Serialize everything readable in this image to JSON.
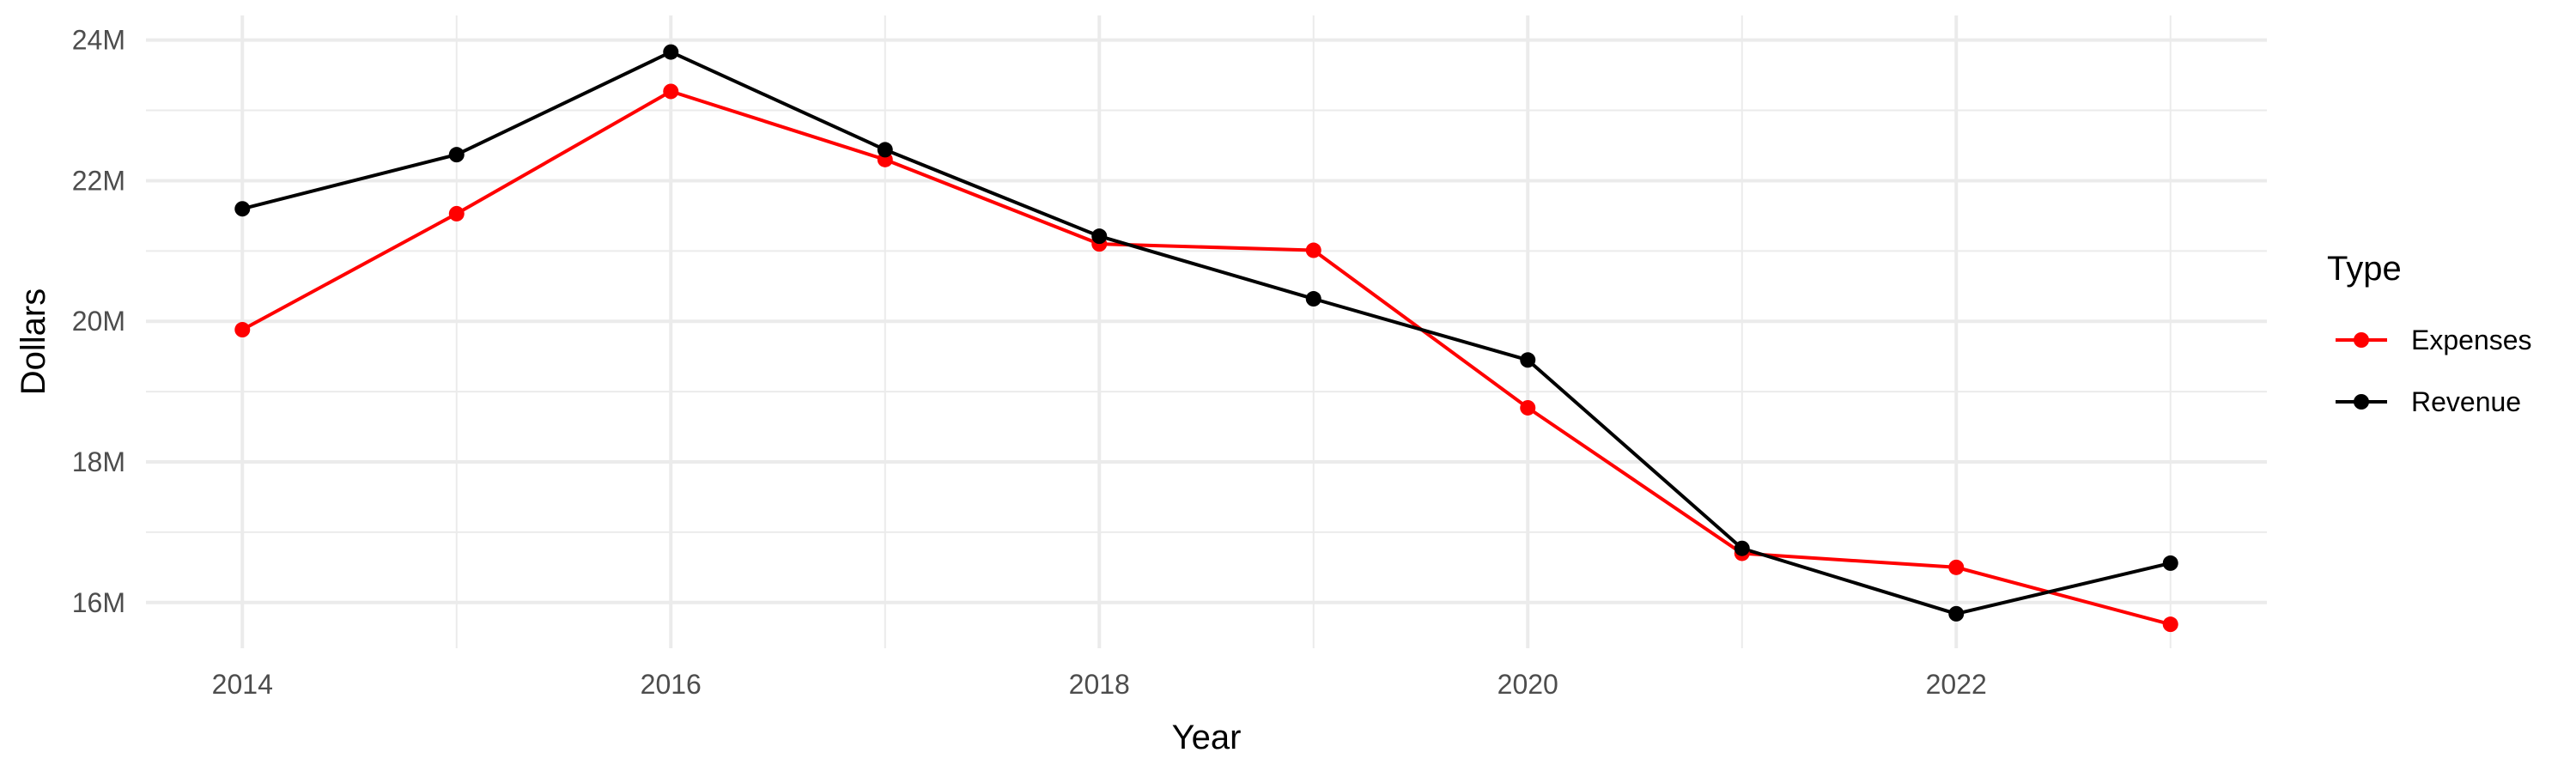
{
  "chart_data": {
    "type": "line",
    "title": "",
    "xlabel": "Year",
    "ylabel": "Dollars",
    "x": [
      2014,
      2015,
      2016,
      2017,
      2018,
      2019,
      2020,
      2021,
      2022,
      2023
    ],
    "x_ticks": [
      "2014",
      "2016",
      "2018",
      "2020",
      "2022"
    ],
    "x_tick_values": [
      2014,
      2016,
      2018,
      2020,
      2022
    ],
    "y_ticks": [
      "16M",
      "18M",
      "20M",
      "22M",
      "24M"
    ],
    "y_tick_values": [
      16000000,
      18000000,
      20000000,
      22000000,
      24000000
    ],
    "xlim": [
      2013.55,
      2023.45
    ],
    "ylim": [
      15350000,
      24350000
    ],
    "grid": true,
    "legend": {
      "title": "Type",
      "position": "right"
    },
    "series": [
      {
        "name": "Expenses",
        "color": "#FF0000",
        "values": [
          19880000,
          21530000,
          23270000,
          22300000,
          21100000,
          21010000,
          18770000,
          16700000,
          16500000,
          15690000
        ]
      },
      {
        "name": "Revenue",
        "color": "#000000",
        "values": [
          21600000,
          22370000,
          23830000,
          22440000,
          21210000,
          20320000,
          19450000,
          16770000,
          15840000,
          16560000
        ]
      }
    ]
  }
}
